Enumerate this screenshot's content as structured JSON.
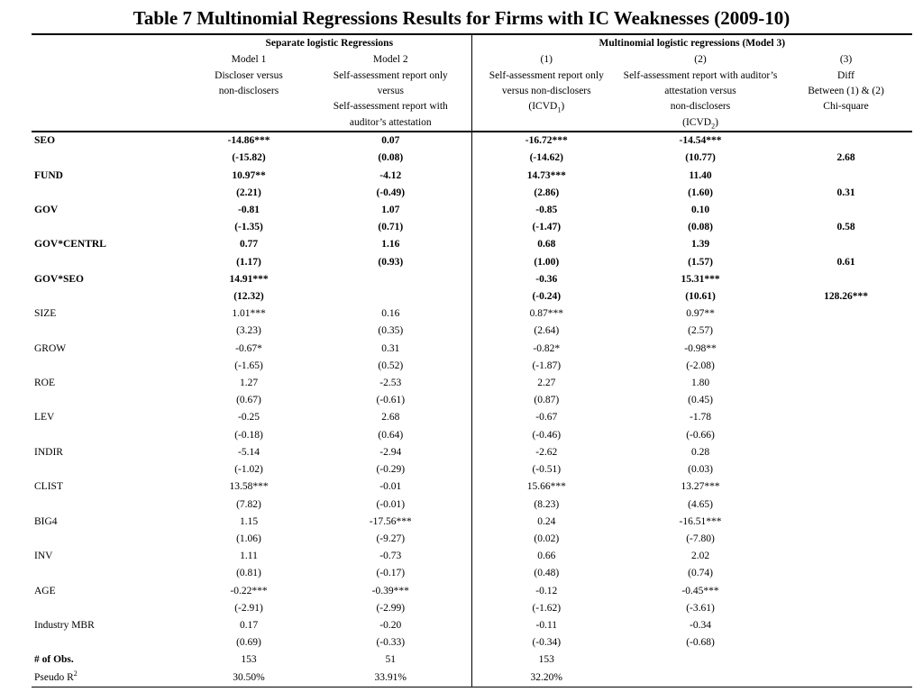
{
  "title": "Table 7 Multinomial Regressions Results for Firms with IC Weaknesses (2009-10)",
  "header": {
    "group1": "Separate logistic Regressions",
    "group2": "Multinomial logistic regressions (Model 3)",
    "m1": [
      "Model 1",
      "Discloser  versus",
      "non-disclosers"
    ],
    "m2": [
      "Model 2",
      "Self-assessment report only",
      "versus",
      "Self-assessment report with",
      "auditor’s attestation"
    ],
    "c1": [
      "(1)",
      "Self-assessment report only",
      "versus non-disclosers"
    ],
    "c1_icvd": "(ICVD",
    "c1_sub": "1",
    "c2": [
      "(2)",
      "Self-assessment report with auditor’s",
      "attestation versus",
      "non-disclosers"
    ],
    "c2_icvd": "(ICVD",
    "c2_sub": "2",
    "close_paren": ")",
    "c3": [
      "(3)",
      "Diff",
      "Between (1) & (2)",
      "Chi-square"
    ]
  },
  "rows": [
    {
      "label": "SEO",
      "bold": true,
      "cells": [
        "-14.86***",
        "0.07",
        "-16.72***",
        "-14.54***",
        ""
      ]
    },
    {
      "label": "",
      "bold": true,
      "cells": [
        "(-15.82)",
        "(0.08)",
        "(-14.62)",
        "(10.77)",
        "2.68"
      ]
    },
    {
      "label": "FUND",
      "bold": true,
      "cells": [
        "10.97**",
        "-4.12",
        "14.73***",
        "11.40",
        ""
      ]
    },
    {
      "label": "",
      "bold": true,
      "cells": [
        "(2.21)",
        "(-0.49)",
        "(2.86)",
        "(1.60)",
        "0.31"
      ]
    },
    {
      "label": "GOV",
      "bold": true,
      "cells": [
        "-0.81",
        "1.07",
        "-0.85",
        "0.10",
        ""
      ]
    },
    {
      "label": "",
      "bold": true,
      "cells": [
        "(-1.35)",
        "(0.71)",
        "(-1.47)",
        "(0.08)",
        "0.58"
      ]
    },
    {
      "label": "GOV*CENTRL",
      "bold": true,
      "cells": [
        "0.77",
        "1.16",
        "0.68",
        "1.39",
        ""
      ]
    },
    {
      "label": "",
      "bold": true,
      "cells": [
        "(1.17)",
        "(0.93)",
        "(1.00)",
        "(1.57)",
        "0.61"
      ]
    },
    {
      "label": "GOV*SEO",
      "bold": true,
      "cells": [
        "14.91***",
        "",
        "-0.36",
        "15.31***",
        ""
      ]
    },
    {
      "label": "",
      "bold": true,
      "cells": [
        "(12.32)",
        "",
        "(-0.24)",
        "(10.61)",
        "128.26***"
      ]
    },
    {
      "label": "SIZE",
      "bold": false,
      "cells": [
        "1.01***",
        "0.16",
        "0.87***",
        "0.97**",
        ""
      ]
    },
    {
      "label": "",
      "bold": false,
      "cells": [
        "(3.23)",
        "(0.35)",
        "(2.64)",
        "(2.57)",
        ""
      ]
    },
    {
      "label": "GROW",
      "bold": false,
      "cells": [
        "-0.67*",
        "0.31",
        "-0.82*",
        "-0.98**",
        ""
      ]
    },
    {
      "label": "",
      "bold": false,
      "cells": [
        "(-1.65)",
        "(0.52)",
        "(-1.87)",
        "(-2.08)",
        ""
      ]
    },
    {
      "label": "ROE",
      "bold": false,
      "cells": [
        "1.27",
        "-2.53",
        "2.27",
        "1.80",
        ""
      ]
    },
    {
      "label": "",
      "bold": false,
      "cells": [
        "(0.67)",
        "(-0.61)",
        "(0.87)",
        "(0.45)",
        ""
      ]
    },
    {
      "label": "LEV",
      "bold": false,
      "cells": [
        "-0.25",
        "2.68",
        "-0.67",
        "-1.78",
        ""
      ]
    },
    {
      "label": "",
      "bold": false,
      "cells": [
        "(-0.18)",
        "(0.64)",
        "(-0.46)",
        "(-0.66)",
        ""
      ]
    },
    {
      "label": "INDIR",
      "bold": false,
      "cells": [
        "-5.14",
        "-2.94",
        "-2.62",
        "0.28",
        ""
      ]
    },
    {
      "label": "",
      "bold": false,
      "cells": [
        "(-1.02)",
        "(-0.29)",
        "(-0.51)",
        "(0.03)",
        ""
      ]
    },
    {
      "label": "CLIST",
      "bold": false,
      "cells": [
        "13.58***",
        "-0.01",
        "15.66***",
        "13.27***",
        ""
      ]
    },
    {
      "label": "",
      "bold": false,
      "cells": [
        "(7.82)",
        "(-0.01)",
        "(8.23)",
        "(4.65)",
        ""
      ]
    },
    {
      "label": "BIG4",
      "bold": false,
      "cells": [
        "1.15",
        "-17.56***",
        "0.24",
        "-16.51***",
        ""
      ]
    },
    {
      "label": "",
      "bold": false,
      "cells": [
        "(1.06)",
        "(-9.27)",
        "(0.02)",
        "(-7.80)",
        ""
      ]
    },
    {
      "label": "INV",
      "bold": false,
      "cells": [
        "1.11",
        "-0.73",
        "0.66",
        "2.02",
        ""
      ]
    },
    {
      "label": "",
      "bold": false,
      "cells": [
        "(0.81)",
        "(-0.17)",
        "(0.48)",
        "(0.74)",
        ""
      ]
    },
    {
      "label": "AGE",
      "bold": false,
      "cells": [
        "-0.22***",
        "-0.39***",
        "-0.12",
        "-0.45***",
        ""
      ]
    },
    {
      "label": "",
      "bold": false,
      "cells": [
        "(-2.91)",
        "(-2.99)",
        "(-1.62)",
        "(-3.61)",
        ""
      ]
    },
    {
      "label": "Industry MBR",
      "bold": false,
      "cells": [
        "0.17",
        "-0.20",
        "-0.11",
        "-0.34",
        ""
      ]
    },
    {
      "label": "",
      "bold": false,
      "cells": [
        "(0.69)",
        "(-0.33)",
        "(-0.34)",
        "(-0.68)",
        ""
      ]
    },
    {
      "label": "# of Obs.",
      "bold": false,
      "labelBold": true,
      "cells": [
        "153",
        "51",
        "153",
        "",
        ""
      ]
    },
    {
      "label": "Pseudo R",
      "sup": "2",
      "bold": false,
      "cells": [
        "30.50%",
        "33.91%",
        "32.20%",
        "",
        ""
      ]
    }
  ]
}
